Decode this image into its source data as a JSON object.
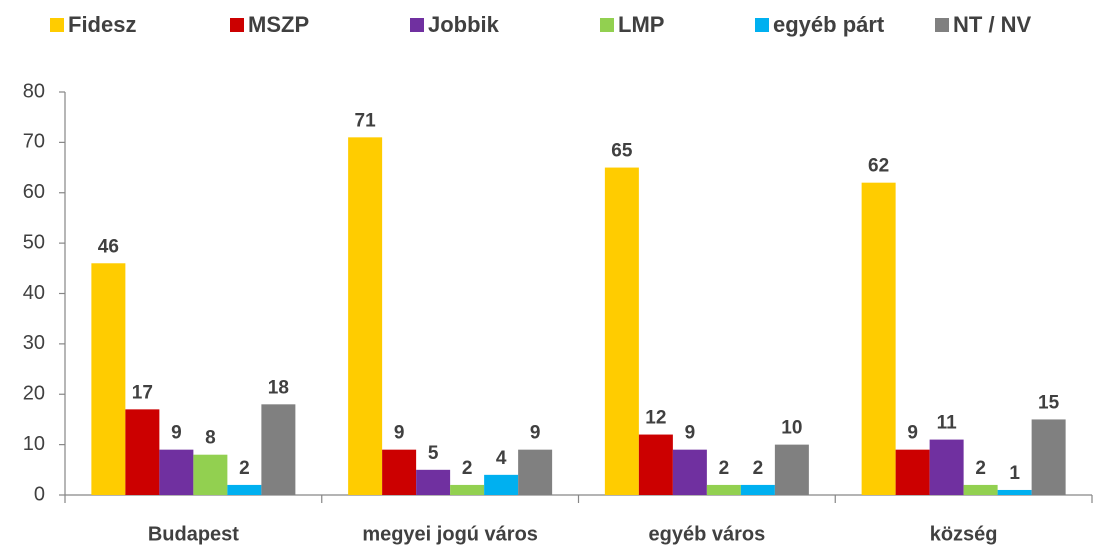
{
  "chart_data": {
    "type": "bar",
    "categories": [
      "Budapest",
      "megyei jogú város",
      "egyéb város",
      "község"
    ],
    "series": [
      {
        "name": "Fidesz",
        "color": "#FFCC00",
        "values": [
          46,
          71,
          65,
          62
        ]
      },
      {
        "name": "MSZP",
        "color": "#CC0000",
        "values": [
          17,
          9,
          12,
          9
        ]
      },
      {
        "name": "Jobbik",
        "color": "#7030A0",
        "values": [
          9,
          5,
          9,
          11
        ]
      },
      {
        "name": "LMP",
        "color": "#92D050",
        "values": [
          8,
          2,
          2,
          2
        ]
      },
      {
        "name": "egyéb párt",
        "color": "#00B0F0",
        "values": [
          2,
          4,
          2,
          1
        ]
      },
      {
        "name": "NT / NV",
        "color": "#808080",
        "values": [
          18,
          9,
          10,
          15
        ]
      }
    ],
    "ylim": [
      0,
      80
    ],
    "yticks": [
      0,
      10,
      20,
      30,
      40,
      50,
      60,
      70,
      80
    ],
    "legend": "top",
    "grid": false
  }
}
